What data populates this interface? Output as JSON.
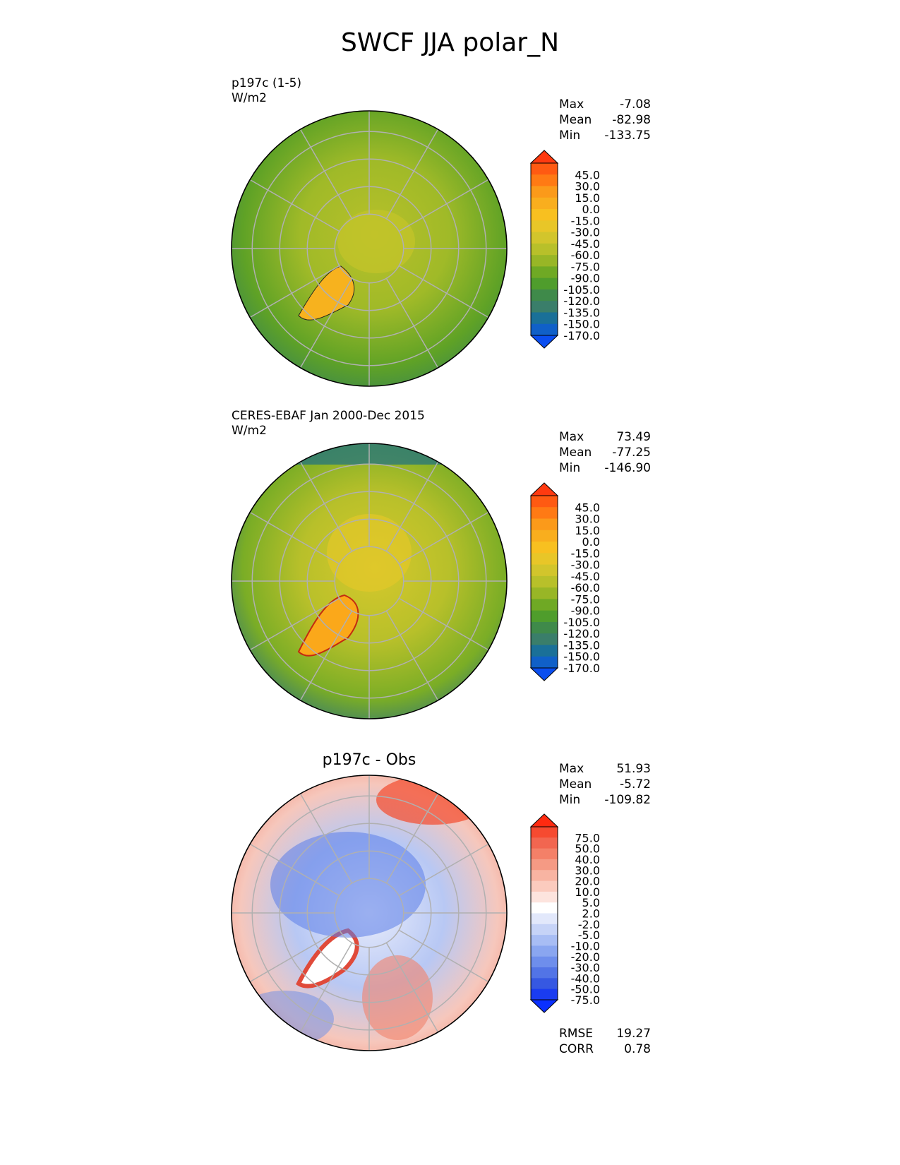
{
  "title": "SWCF JJA polar_N",
  "panels": [
    {
      "id": "test",
      "title_lines": [
        "p197c (1-5)",
        "W/m2"
      ],
      "center_title": "",
      "stats": [
        [
          "Max",
          "-7.08"
        ],
        [
          "Mean",
          "-82.98"
        ],
        [
          "Min",
          "-133.75"
        ]
      ],
      "colorbar_labels": [
        "45.0",
        "30.0",
        "15.0",
        "0.0",
        "-15.0",
        "-30.0",
        "-45.0",
        "-60.0",
        "-75.0",
        "-90.0",
        "-105.0",
        "-120.0",
        "-135.0",
        "-150.0",
        "-170.0"
      ],
      "colorbar_colors": [
        "#ff3a10",
        "#ff5a12",
        "#ff7a14",
        "#fb9a1a",
        "#f9ae1e",
        "#f8c020",
        "#e8c628",
        "#d2c52c",
        "#b8c02a",
        "#98b626",
        "#6fa924",
        "#4f9d2c",
        "#3f8a4a",
        "#3a7e6a",
        "#1a7098",
        "#1060c8",
        "#0a4ef0"
      ],
      "bottom_stats": []
    },
    {
      "id": "ref",
      "title_lines": [
        "CERES-EBAF Jan 2000-Dec 2015",
        "W/m2"
      ],
      "center_title": "",
      "stats": [
        [
          "Max",
          "73.49"
        ],
        [
          "Mean",
          "-77.25"
        ],
        [
          "Min",
          "-146.90"
        ]
      ],
      "colorbar_labels": [
        "45.0",
        "30.0",
        "15.0",
        "0.0",
        "-15.0",
        "-30.0",
        "-45.0",
        "-60.0",
        "-75.0",
        "-90.0",
        "-105.0",
        "-120.0",
        "-135.0",
        "-150.0",
        "-170.0"
      ],
      "colorbar_colors": [
        "#ff3a10",
        "#ff5a12",
        "#ff7a14",
        "#fb9a1a",
        "#f9ae1e",
        "#f8c020",
        "#e8c628",
        "#d2c52c",
        "#b8c02a",
        "#98b626",
        "#6fa924",
        "#4f9d2c",
        "#3f8a4a",
        "#3a7e6a",
        "#1a7098",
        "#1060c8",
        "#0a4ef0"
      ],
      "bottom_stats": []
    },
    {
      "id": "diff",
      "title_lines": [],
      "center_title": "p197c - Obs",
      "stats": [
        [
          "Max",
          "51.93"
        ],
        [
          "Mean",
          "-5.72"
        ],
        [
          "Min",
          "-109.82"
        ]
      ],
      "colorbar_labels": [
        "75.0",
        "50.0",
        "40.0",
        "30.0",
        "20.0",
        "10.0",
        "5.0",
        "2.0",
        "-2.0",
        "-5.0",
        "-10.0",
        "-20.0",
        "-30.0",
        "-40.0",
        "-50.0",
        "-75.0"
      ],
      "colorbar_colors": [
        "#ff2a10",
        "#f64a30",
        "#f26650",
        "#f48068",
        "#f59a84",
        "#f8b4a2",
        "#fbcbbe",
        "#fde4de",
        "#ffffff",
        "#e2e8fb",
        "#c6d3f7",
        "#a8bdf4",
        "#8aa6f0",
        "#6e8eec",
        "#5274e6",
        "#3658e2",
        "#1a3cf0",
        "#0a30ff"
      ],
      "bottom_stats": [
        [
          "RMSE",
          "19.27"
        ],
        [
          "CORR",
          "0.78"
        ]
      ]
    }
  ]
}
